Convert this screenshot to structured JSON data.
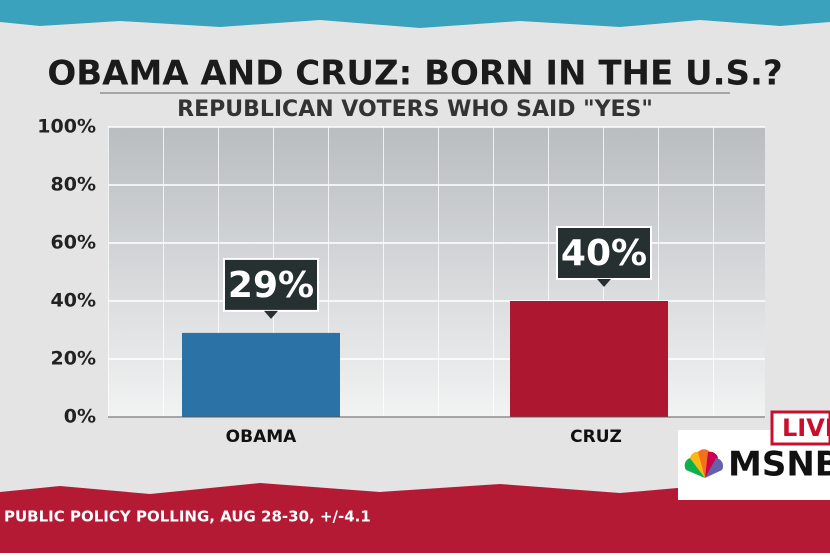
{
  "chart_data": {
    "type": "bar",
    "title": "OBAMA AND CRUZ: BORN IN THE U.S.?",
    "subtitle": "REPUBLICAN VOTERS WHO SAID \"YES\"",
    "categories": [
      "OBAMA",
      "CRUZ"
    ],
    "values": [
      29,
      40
    ],
    "value_labels": [
      "29%",
      "40%"
    ],
    "colors": [
      "#2b73a6",
      "#ad1730"
    ],
    "ylim": [
      0,
      100
    ],
    "yticks": [
      {
        "value": 0,
        "label": "0%"
      },
      {
        "value": 20,
        "label": "20%"
      },
      {
        "value": 40,
        "label": "40%"
      },
      {
        "value": 60,
        "label": "60%"
      },
      {
        "value": 80,
        "label": "80%"
      },
      {
        "value": 100,
        "label": "100%"
      }
    ],
    "grid": true,
    "source": "PUBLIC POLICY POLLING, AUG 28-30, +/-4.1",
    "badge": "LIVE",
    "network": "MSNBC"
  }
}
